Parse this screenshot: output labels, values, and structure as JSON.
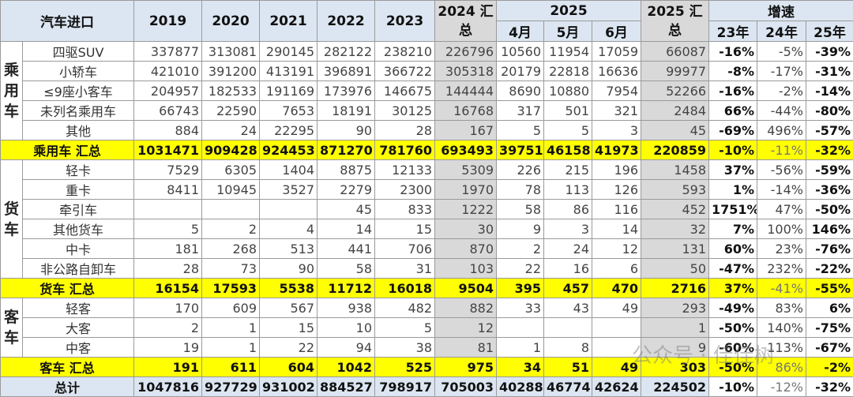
{
  "header": {
    "title": "汽车进口",
    "years": [
      "2019",
      "2020",
      "2021",
      "2022",
      "2023"
    ],
    "y2024": "2024 汇总",
    "y2025": "2025",
    "months": [
      "4月",
      "5月",
      "6月"
    ],
    "y2025sum": "2025 汇总",
    "growth": "增速",
    "growth_cols": [
      "23年",
      "24年",
      "25年"
    ]
  },
  "groups": [
    {
      "label": "乘用车",
      "rows": [
        [
          "四驱SUV",
          "337877",
          "313081",
          "290145",
          "282122",
          "238210",
          "226796",
          "10560",
          "11954",
          "17059",
          "66087",
          "-16%",
          "-5%",
          "-39%"
        ],
        [
          "小轿车",
          "421010",
          "391200",
          "413191",
          "396891",
          "366722",
          "305318",
          "20179",
          "22818",
          "16636",
          "99977",
          "-8%",
          "-17%",
          "-31%"
        ],
        [
          "≤9座小客车",
          "204957",
          "182533",
          "191169",
          "173976",
          "146675",
          "144444",
          "8690",
          "10880",
          "7954",
          "52266",
          "-16%",
          "-2%",
          "-14%"
        ],
        [
          "未列名乘用车",
          "66743",
          "22590",
          "7653",
          "18191",
          "30125",
          "16768",
          "317",
          "501",
          "321",
          "2484",
          "66%",
          "-44%",
          "-80%"
        ],
        [
          "其他",
          "884",
          "24",
          "22295",
          "90",
          "28",
          "167",
          "5",
          "5",
          "3",
          "45",
          "-69%",
          "496%",
          "-57%"
        ]
      ],
      "summary": [
        "乘用车 汇总",
        "1031471",
        "909428",
        "924453",
        "871270",
        "781760",
        "693493",
        "39751",
        "46158",
        "41973",
        "220859",
        "-10%",
        "-11%",
        "-32%"
      ]
    },
    {
      "label": "货车",
      "rows": [
        [
          "轻卡",
          "7529",
          "6305",
          "1404",
          "8875",
          "12133",
          "5309",
          "226",
          "215",
          "196",
          "1458",
          "37%",
          "-56%",
          "-59%"
        ],
        [
          "重卡",
          "8411",
          "10945",
          "3527",
          "2279",
          "2300",
          "1970",
          "78",
          "113",
          "126",
          "593",
          "1%",
          "-14%",
          "-36%"
        ],
        [
          "牵引车",
          "",
          "",
          "",
          "45",
          "833",
          "1222",
          "58",
          "86",
          "116",
          "452",
          "1751%",
          "47%",
          "-50%"
        ],
        [
          "其他货车",
          "5",
          "2",
          "4",
          "14",
          "15",
          "30",
          "9",
          "3",
          "14",
          "32",
          "7%",
          "100%",
          "146%"
        ],
        [
          "中卡",
          "181",
          "268",
          "513",
          "441",
          "706",
          "870",
          "2",
          "24",
          "12",
          "131",
          "60%",
          "23%",
          "-76%"
        ],
        [
          "非公路自卸车",
          "28",
          "73",
          "90",
          "58",
          "31",
          "103",
          "22",
          "16",
          "6",
          "50",
          "-47%",
          "232%",
          "-22%"
        ]
      ],
      "summary": [
        "货车 汇总",
        "16154",
        "17593",
        "5538",
        "11712",
        "16018",
        "9504",
        "395",
        "457",
        "470",
        "2716",
        "37%",
        "-41%",
        "-55%"
      ]
    },
    {
      "label": "客车",
      "rows": [
        [
          "轻客",
          "170",
          "609",
          "567",
          "938",
          "482",
          "882",
          "33",
          "43",
          "49",
          "293",
          "-49%",
          "83%",
          "6%"
        ],
        [
          "大客",
          "2",
          "1",
          "15",
          "10",
          "5",
          "12",
          "",
          "",
          "",
          "1",
          "-50%",
          "140%",
          "-75%"
        ],
        [
          "中客",
          "19",
          "1",
          "22",
          "94",
          "38",
          "81",
          "1",
          "8",
          "",
          "9",
          "-60%",
          "113%",
          "-67%"
        ]
      ],
      "summary": [
        "客车 汇总",
        "191",
        "611",
        "604",
        "1042",
        "525",
        "975",
        "34",
        "51",
        "49",
        "303",
        "-50%",
        "86%",
        "-2%"
      ]
    }
  ],
  "total": [
    "总计",
    "1047816",
    "927729",
    "931002",
    "884527",
    "798917",
    "705003",
    "40288",
    "46774",
    "42624",
    "224502",
    "-10%",
    "-12%",
    "-32%"
  ],
  "colors": {
    "header": "#dce6f2",
    "summary": "#ffff00",
    "gray_col": "#d9d9d9"
  },
  "watermark": "公众号 · 佳佳树"
}
